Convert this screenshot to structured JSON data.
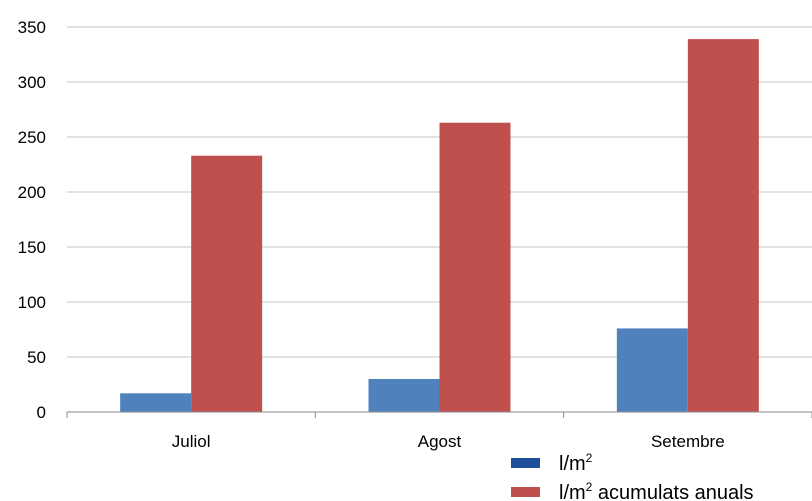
{
  "chart_data": {
    "type": "bar",
    "categories": [
      "Juliol",
      "Agost",
      "Setembre"
    ],
    "series": [
      {
        "name_main": "l/m",
        "name_sup": "2",
        "name_rest": "",
        "color": "#4f81bd",
        "legend_color": "#1f4e9a",
        "values": [
          17,
          30,
          76
        ]
      },
      {
        "name_main": "l/m",
        "name_sup": "2",
        "name_rest": " acumulats anuals",
        "color": "#c0504d",
        "legend_color": "#c0504d",
        "values": [
          233,
          263,
          339
        ]
      }
    ],
    "yticks": [
      "0",
      "50",
      "100",
      "150",
      "200",
      "250",
      "300",
      "350"
    ],
    "ylim": [
      0,
      350
    ],
    "grid": true,
    "legend": "bottom-right",
    "gridline_color": "#c6c6c6",
    "axis_color": "#8a8a8a"
  }
}
